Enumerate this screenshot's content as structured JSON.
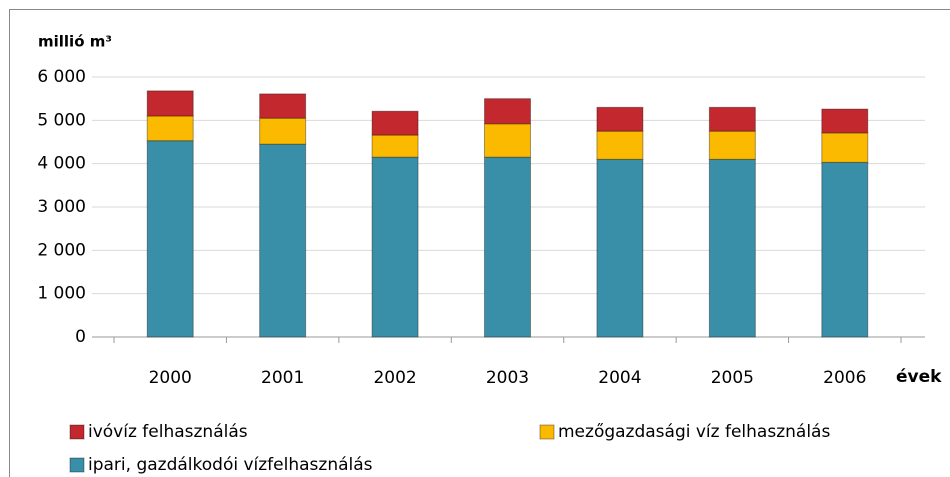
{
  "chart_data": {
    "type": "stacked_bar",
    "y_axis_label": "millió m³",
    "x_axis_label": "évek",
    "categories": [
      "2000",
      "2001",
      "2002",
      "2003",
      "2004",
      "2005",
      "2006"
    ],
    "series": [
      {
        "name": "ipari, gazdálkodói vízfelhasználás",
        "color": "#3a8fa8",
        "values": [
          4530,
          4450,
          4150,
          4150,
          4100,
          4100,
          4030
        ]
      },
      {
        "name": "mezőgazdasági víz felhasználás",
        "color": "#fbb900",
        "values": [
          570,
          600,
          510,
          770,
          650,
          650,
          680
        ]
      },
      {
        "name": "ivóvíz felhasználás",
        "color": "#c3282e",
        "values": [
          580,
          560,
          550,
          580,
          550,
          550,
          550
        ]
      }
    ],
    "ylim": [
      0,
      6000
    ],
    "yticks": [
      0,
      {
        "value": 1000,
        "label": "1 000"
      },
      {
        "value": 2000,
        "label": "2 000"
      },
      {
        "value": 3000,
        "label": "3 000"
      },
      {
        "value": 4000,
        "label": "4 000"
      },
      {
        "value": 5000,
        "label": "5 000"
      },
      {
        "value": 6000,
        "label": "6 000"
      }
    ],
    "grid": true
  }
}
